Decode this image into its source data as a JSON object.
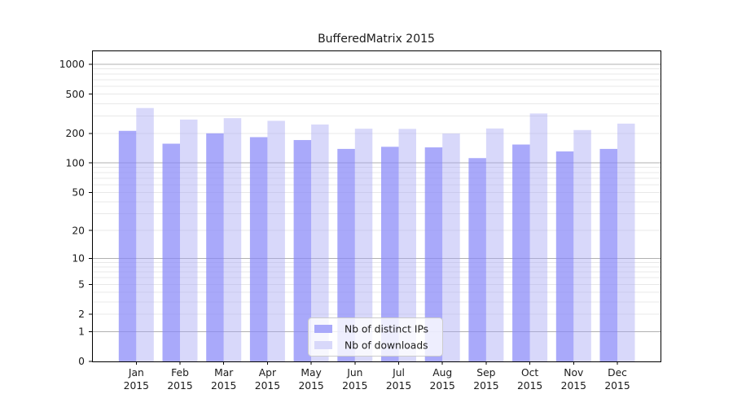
{
  "title": "BufferedMatrix 2015",
  "chart_data": {
    "type": "bar",
    "title": "BufferedMatrix 2015",
    "categories": [
      "Jan",
      "Feb",
      "Mar",
      "Apr",
      "May",
      "Jun",
      "Jul",
      "Aug",
      "Sep",
      "Oct",
      "Nov",
      "Dec"
    ],
    "year_label": "2015",
    "series": [
      {
        "name": "Nb of distinct IPs",
        "color": "#a9a9fa",
        "fill": "rgba(136,136,248,0.72)",
        "values": [
          212,
          157,
          200,
          183,
          171,
          139,
          146,
          144,
          112,
          154,
          131,
          139
        ]
      },
      {
        "name": "Nb of downloads",
        "color": "#d8d8fa",
        "fill": "rgba(168,168,244,0.45)",
        "values": [
          361,
          276,
          285,
          268,
          246,
          223,
          222,
          199,
          224,
          318,
          216,
          251
        ]
      }
    ],
    "xlabel": "",
    "ylabel": "",
    "y_scale": "log1p",
    "y_ticks": [
      0,
      1,
      2,
      5,
      10,
      20,
      50,
      100,
      200,
      500,
      1000
    ],
    "ylim": [
      0,
      1380
    ],
    "grid": true,
    "grid_major_color": "#b0b0b0",
    "grid_minor_color": "#e8e8e8",
    "axis_color": "#000000",
    "legend_position": "inside-bottom-center"
  }
}
